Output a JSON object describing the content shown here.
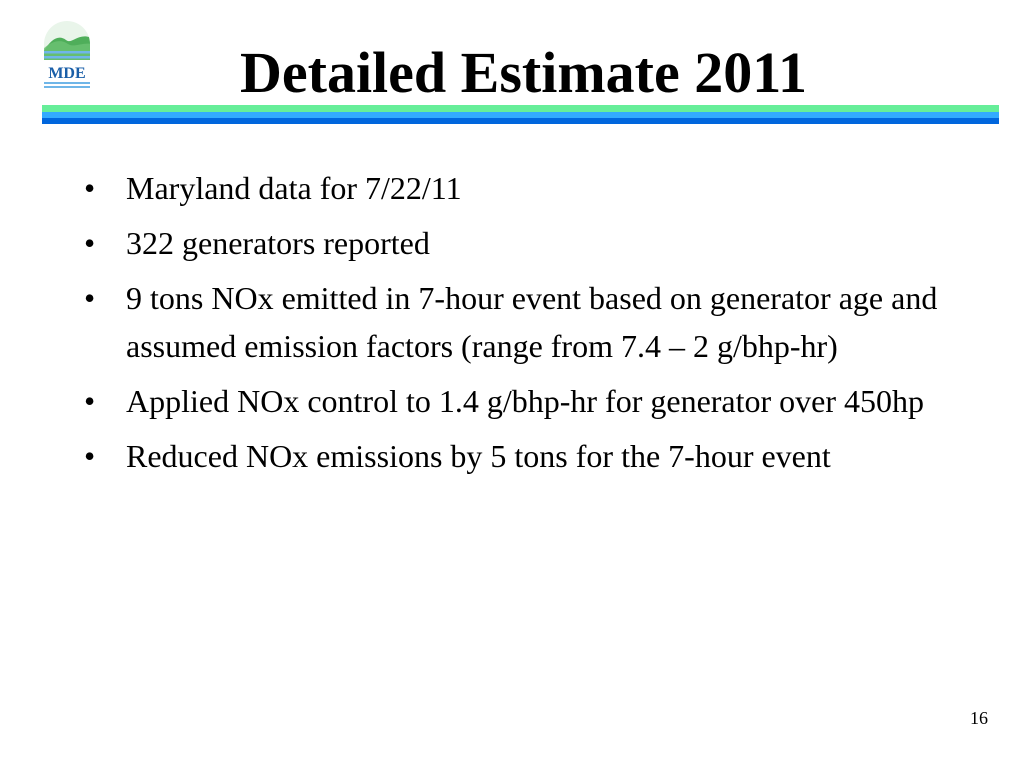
{
  "logo": {
    "text": "MDE"
  },
  "title": "Detailed Estimate 2011",
  "bullet_glyph": "•",
  "bullets": [
    "Maryland data for 7/22/11",
    "322 generators reported",
    "9 tons NOx emitted in 7-hour event based on generator age and assumed emission factors (range from 7.4 – 2 g/bhp-hr)",
    "Applied NOx control to 1.4 g/bhp-hr for generator over 450hp",
    "Reduced NOx emissions by 5 tons for the 7-hour event"
  ],
  "page_number": "16",
  "colors": {
    "rule_green": "#66ee99",
    "rule_blue_light": "#33aaff",
    "rule_blue_dark": "#0066dd",
    "logo_land": "#4fae5a",
    "logo_water": "#6fb6e8",
    "logo_text": "#1a5fa8"
  }
}
